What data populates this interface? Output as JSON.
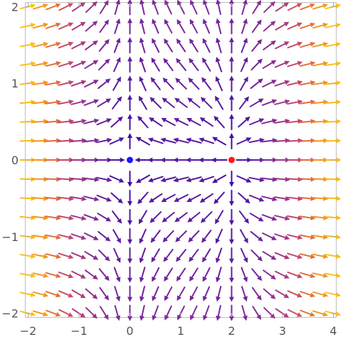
{
  "chart_data": {
    "type": "vector_field",
    "title": "",
    "xlabel": "",
    "ylabel": "",
    "xlim": [
      -2.05,
      4.05
    ],
    "ylim": [
      -2.05,
      2.05
    ],
    "xticks": [
      {
        "value": -2,
        "label": "−2"
      },
      {
        "value": -1,
        "label": "−1"
      },
      {
        "value": 0,
        "label": "0"
      },
      {
        "value": 1,
        "label": "1"
      },
      {
        "value": 2,
        "label": "2"
      },
      {
        "value": 3,
        "label": "3"
      },
      {
        "value": 4,
        "label": "4"
      }
    ],
    "yticks": [
      {
        "value": -2,
        "label": "−2"
      },
      {
        "value": -1,
        "label": "−1"
      },
      {
        "value": 0,
        "label": "0"
      },
      {
        "value": 1,
        "label": "1"
      },
      {
        "value": 2,
        "label": "2"
      }
    ],
    "grid": false,
    "colormap": [
      "#3a0ca3",
      "#7b2a9a",
      "#c2456f",
      "#f08a24",
      "#f7c21a"
    ],
    "field": {
      "description_formula": "(x^2 - 2x, y)",
      "x_range": [
        -2,
        4
      ],
      "y_range": [
        -2,
        2
      ],
      "samples_x": 25,
      "samples_y": 17
    },
    "points": [
      {
        "name": "",
        "x": 0,
        "y": 0,
        "color": "#1a1aff"
      },
      {
        "name": "",
        "x": 2,
        "y": 0,
        "color": "#ff1a1a"
      }
    ]
  }
}
